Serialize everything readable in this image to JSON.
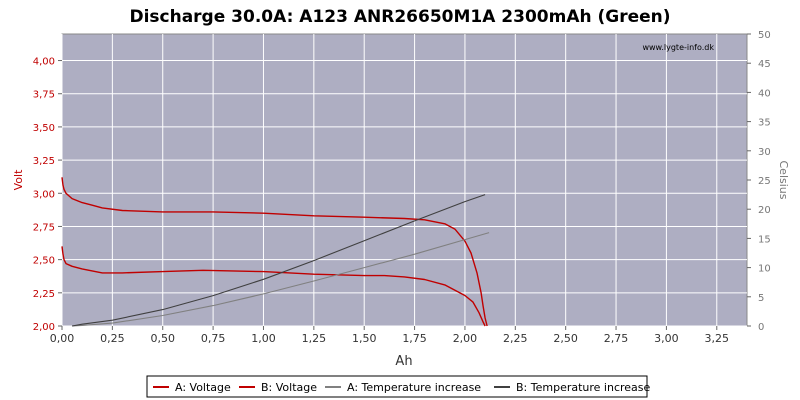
{
  "chart_data": {
    "type": "line",
    "title": "Discharge 30.0A: A123 ANR26650M1A 2300mAh (Green)",
    "watermark": "www.lygte-info.dk",
    "xlabel": "Ah",
    "ylabel_left": "Volt",
    "ylabel_right": "Celsius",
    "xlim": [
      0,
      3.4
    ],
    "ylim_left": [
      2.0,
      4.2
    ],
    "ylim_right": [
      0,
      50
    ],
    "x_ticks": [
      0,
      0.25,
      0.5,
      0.75,
      1.0,
      1.25,
      1.5,
      1.75,
      2.0,
      2.25,
      2.5,
      2.75,
      3.0,
      3.25
    ],
    "x_tick_labels": [
      "0,00",
      "0,25",
      "0,50",
      "0,75",
      "1,00",
      "1,25",
      "1,50",
      "1,75",
      "2,00",
      "2,25",
      "2,50",
      "2,75",
      "3,00",
      "3,25"
    ],
    "y_left_ticks": [
      2.0,
      2.25,
      2.5,
      2.75,
      3.0,
      3.25,
      3.5,
      3.75,
      4.0
    ],
    "y_left_tick_labels": [
      "2,00",
      "2,25",
      "2,50",
      "2,75",
      "3,00",
      "3,25",
      "3,50",
      "3,75",
      "4,00"
    ],
    "y_right_ticks": [
      0,
      5,
      10,
      15,
      20,
      25,
      30,
      35,
      40,
      45,
      50
    ],
    "y_right_tick_labels": [
      "0",
      "5",
      "10",
      "15",
      "20",
      "25",
      "30",
      "35",
      "40",
      "45",
      "50"
    ],
    "grid": true,
    "legend_position": "bottom",
    "plot_background": "#aeaec2",
    "series": [
      {
        "name": "A: Voltage",
        "axis": "left",
        "color": "#c00000",
        "x": [
          0,
          0.005,
          0.01,
          0.02,
          0.05,
          0.1,
          0.15,
          0.2,
          0.3,
          0.5,
          0.75,
          1.0,
          1.25,
          1.5,
          1.7,
          1.8,
          1.9,
          1.95,
          2.0,
          2.03,
          2.06,
          2.08,
          2.09,
          2.1,
          2.11
        ],
        "y": [
          3.12,
          3.06,
          3.03,
          3.0,
          2.96,
          2.93,
          2.91,
          2.89,
          2.87,
          2.86,
          2.86,
          2.85,
          2.83,
          2.82,
          2.81,
          2.8,
          2.77,
          2.73,
          2.64,
          2.55,
          2.4,
          2.25,
          2.15,
          2.06,
          2.0
        ]
      },
      {
        "name": "B: Voltage",
        "axis": "left",
        "color": "#c00000",
        "x": [
          0,
          0.005,
          0.01,
          0.02,
          0.05,
          0.1,
          0.2,
          0.3,
          0.5,
          0.7,
          1.0,
          1.25,
          1.5,
          1.6,
          1.7,
          1.8,
          1.9,
          2.0,
          2.04,
          2.07,
          2.09,
          2.1
        ],
        "y": [
          2.6,
          2.54,
          2.5,
          2.47,
          2.45,
          2.43,
          2.4,
          2.4,
          2.41,
          2.42,
          2.41,
          2.39,
          2.38,
          2.38,
          2.37,
          2.35,
          2.31,
          2.23,
          2.18,
          2.1,
          2.03,
          2.0
        ]
      },
      {
        "name": "A: Temperature increase",
        "axis": "right",
        "color": "#808080",
        "x": [
          0.05,
          0.1,
          0.25,
          0.5,
          0.75,
          1.0,
          1.25,
          1.5,
          1.75,
          2.0,
          2.12
        ],
        "y": [
          0,
          0.1,
          0.5,
          1.8,
          3.5,
          5.5,
          7.7,
          10.0,
          12.3,
          14.8,
          16.0
        ]
      },
      {
        "name": "B: Temperature increase",
        "axis": "right",
        "color": "#404040",
        "x": [
          0.05,
          0.1,
          0.25,
          0.5,
          0.75,
          1.0,
          1.25,
          1.5,
          1.75,
          2.0,
          2.1
        ],
        "y": [
          0,
          0.3,
          1.0,
          2.8,
          5.2,
          8.0,
          11.2,
          14.6,
          18.0,
          21.3,
          22.5
        ]
      }
    ]
  }
}
